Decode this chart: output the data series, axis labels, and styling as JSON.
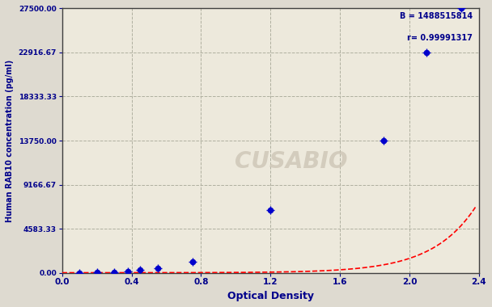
{
  "x_data": [
    0.1,
    0.2,
    0.3,
    0.38,
    0.45,
    0.55,
    0.75,
    1.2,
    1.85,
    2.1,
    2.3
  ],
  "y_data": [
    0,
    30,
    80,
    160,
    280,
    450,
    1100,
    6500,
    13750,
    22916.67,
    27500
  ],
  "xlabel": "Optical Density",
  "ylabel": "Human RAB10 concentration (pg/ml)",
  "xlim": [
    0.0,
    2.4
  ],
  "ylim": [
    0.0,
    27500.0
  ],
  "yticks": [
    0.0,
    4583.33,
    9166.67,
    13750.0,
    18333.33,
    22916.67,
    27500.0
  ],
  "ytick_labels": [
    "0.00",
    "4583.33",
    "9166.67",
    "13750.00",
    "18333.33",
    "22916.67",
    "27500.00"
  ],
  "xticks": [
    0.0,
    0.4,
    0.8,
    1.2,
    1.6,
    2.0,
    2.4
  ],
  "annotation_line1": "B = 1488515814",
  "annotation_line2": "r= 0.99991317",
  "watermark": "CUSABIO",
  "bg_color": "#dedad0",
  "plot_bg_color": "#ede9dc",
  "line_color": "#ff0000",
  "dot_color": "#0000cc",
  "grid_color": "#b0b0a0",
  "annotation_color": "#00008b",
  "text_color": "#00008b",
  "font_family": "DejaVu Sans"
}
